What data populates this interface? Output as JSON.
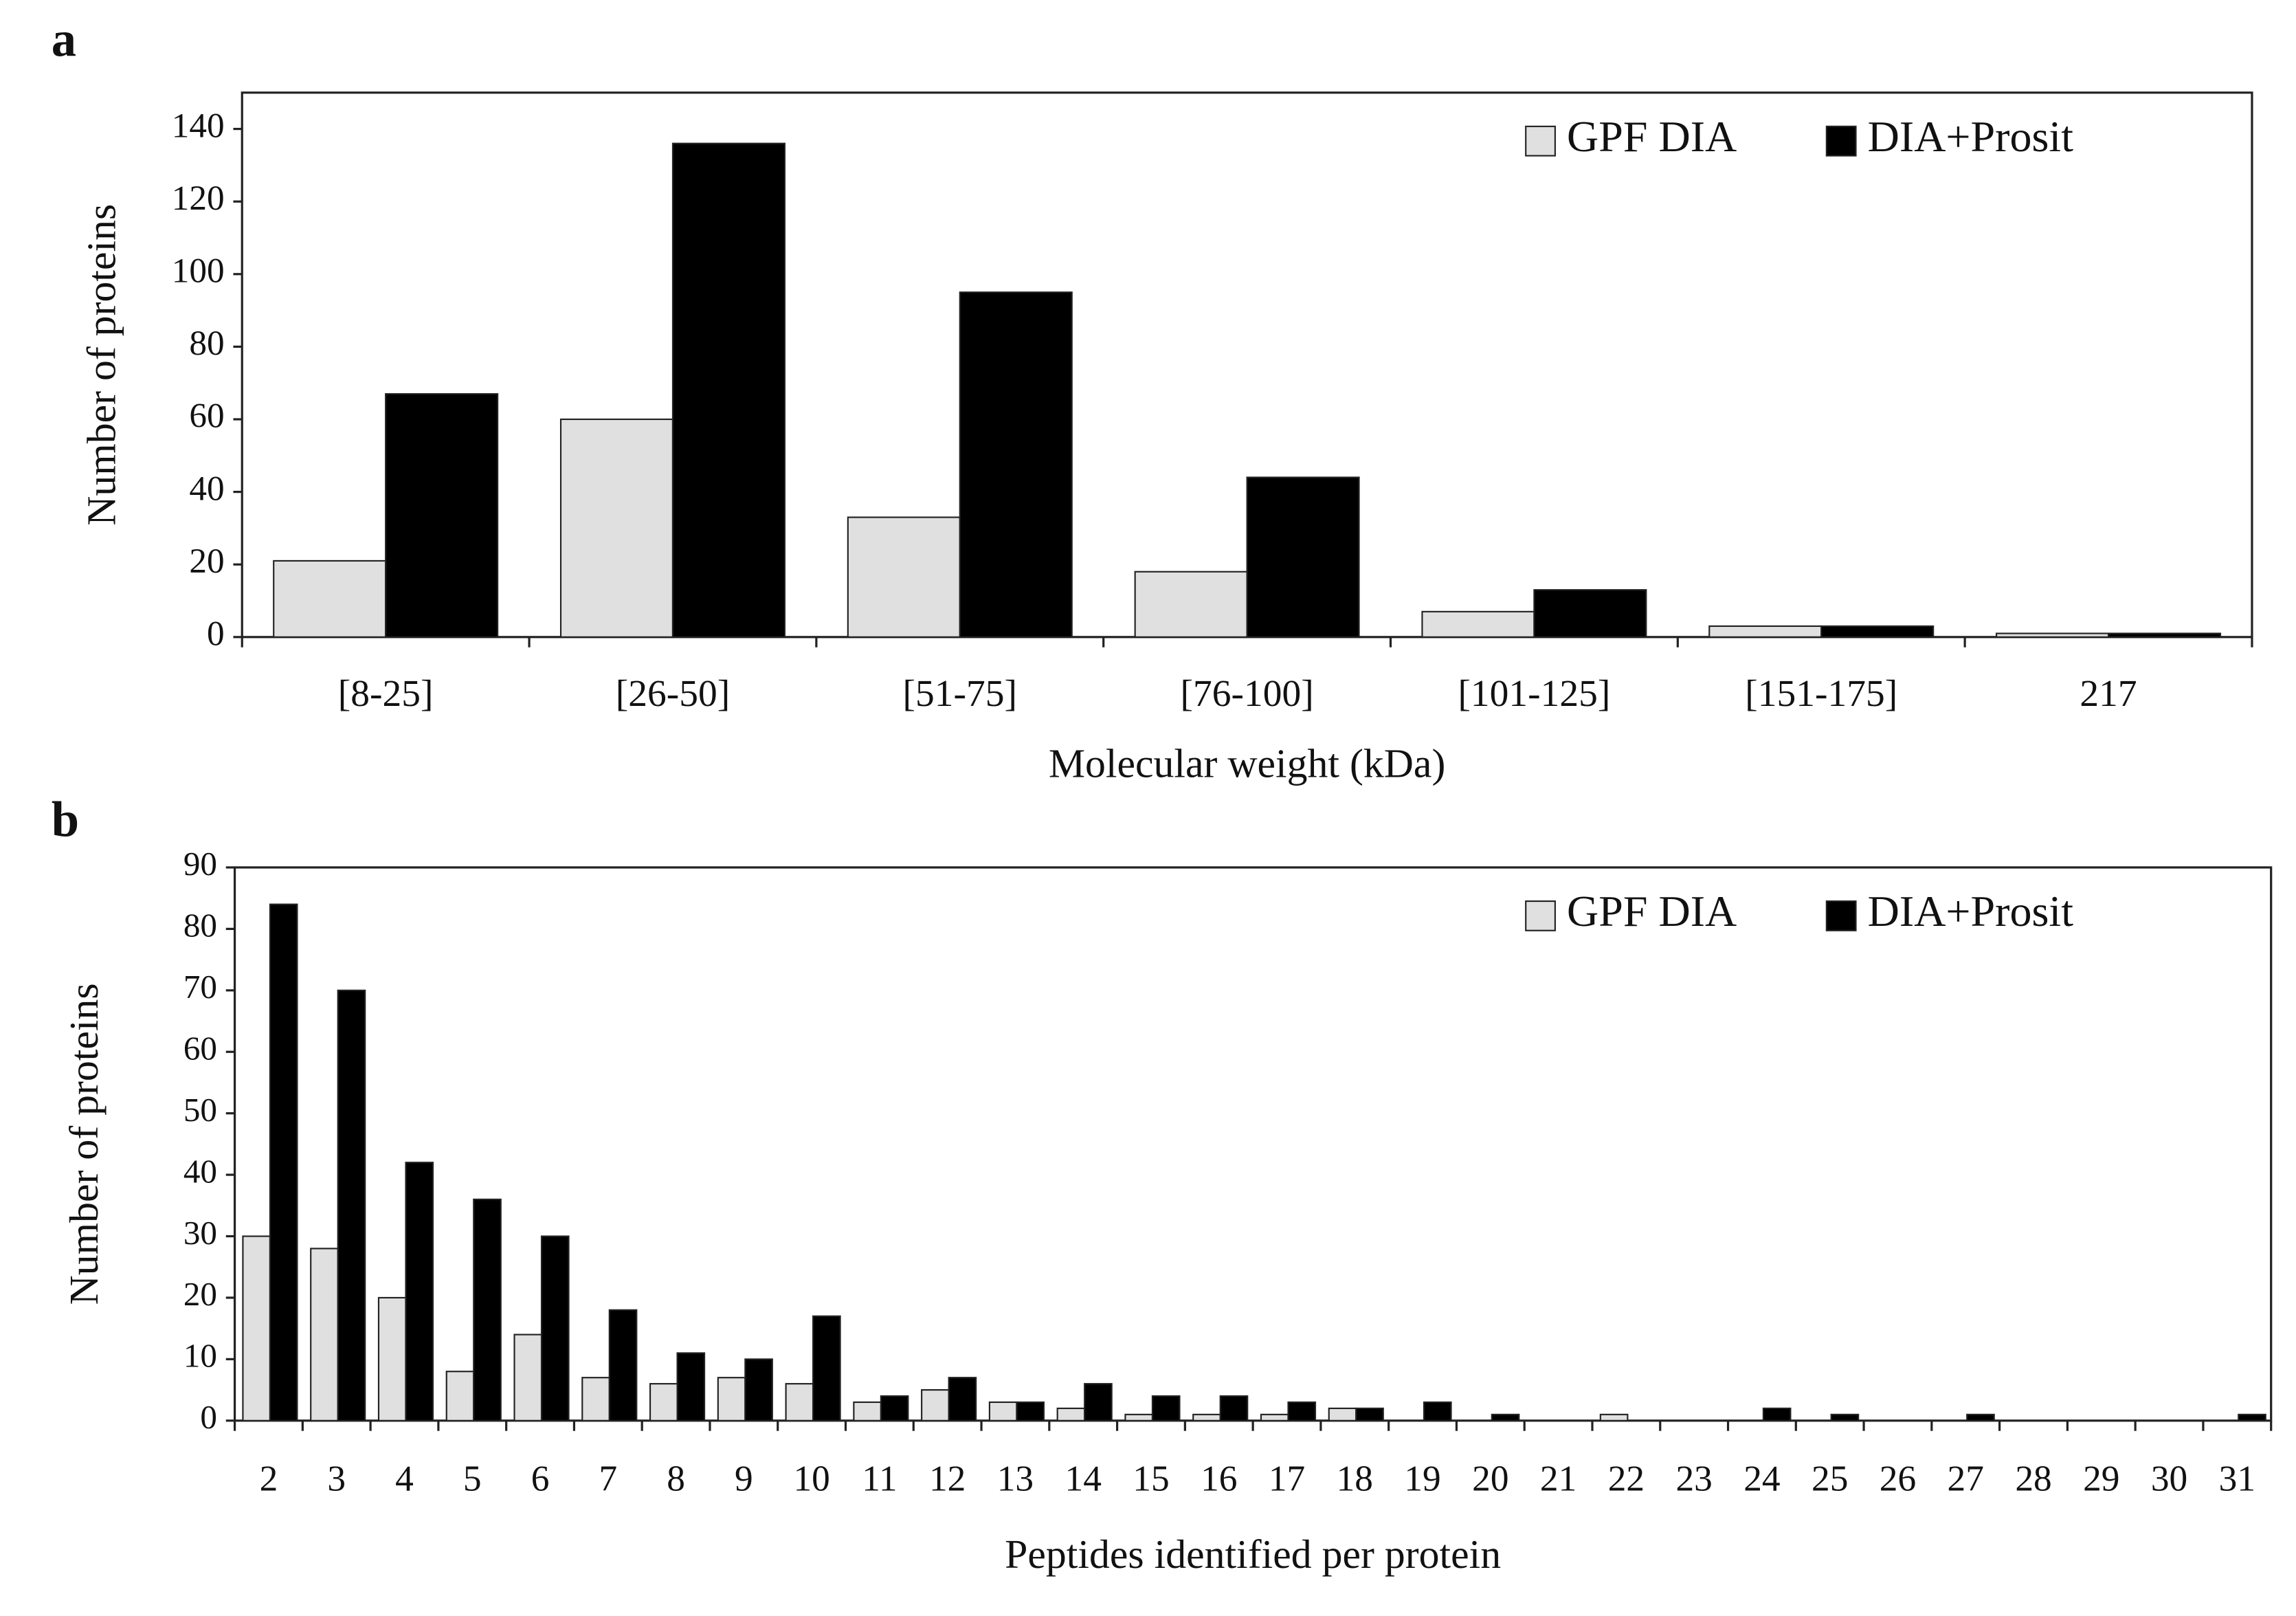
{
  "chart_data": [
    {
      "type": "bar",
      "label": "a",
      "xlabel": "Molecular weight (kDa)",
      "ylabel": "Number of proteins",
      "categories": [
        "[8-25]",
        "[26-50]",
        "[51-75]",
        "[76-100]",
        "[101-125]",
        "[151-175]",
        "217"
      ],
      "series": [
        {
          "name": "GPF DIA",
          "color": "#e0e0e0",
          "values": [
            21,
            60,
            33,
            18,
            7,
            3,
            1
          ]
        },
        {
          "name": "DIA+Prosit",
          "color": "#000000",
          "values": [
            67,
            136,
            95,
            44,
            13,
            3,
            1
          ]
        }
      ],
      "ylim": [
        0,
        150
      ],
      "yticks": [
        0,
        20,
        40,
        60,
        80,
        100,
        120,
        140
      ],
      "grid": false,
      "legend": "top-right"
    },
    {
      "type": "bar",
      "label": "b",
      "xlabel": "Peptides identified per protein",
      "ylabel": "Number of proteins",
      "categories": [
        "2",
        "3",
        "4",
        "5",
        "6",
        "7",
        "8",
        "9",
        "10",
        "11",
        "12",
        "13",
        "14",
        "15",
        "16",
        "17",
        "18",
        "19",
        "20",
        "21",
        "22",
        "23",
        "24",
        "25",
        "26",
        "27",
        "28",
        "29",
        "30",
        "31"
      ],
      "series": [
        {
          "name": "GPF DIA",
          "color": "#e0e0e0",
          "values": [
            30,
            28,
            20,
            8,
            14,
            7,
            6,
            7,
            6,
            3,
            5,
            3,
            2,
            1,
            1,
            1,
            2,
            0,
            0,
            0,
            1,
            0,
            0,
            0,
            0,
            0,
            0,
            0,
            0,
            0
          ]
        },
        {
          "name": "DIA+Prosit",
          "color": "#000000",
          "values": [
            84,
            70,
            42,
            36,
            30,
            18,
            11,
            10,
            17,
            4,
            7,
            3,
            6,
            4,
            4,
            3,
            2,
            3,
            1,
            0,
            0,
            0,
            2,
            1,
            0,
            1,
            0,
            0,
            0,
            1
          ]
        }
      ],
      "ylim": [
        0,
        90
      ],
      "yticks": [
        0,
        10,
        20,
        30,
        40,
        50,
        60,
        70,
        80,
        90
      ],
      "grid": false,
      "legend": "top-right"
    }
  ]
}
